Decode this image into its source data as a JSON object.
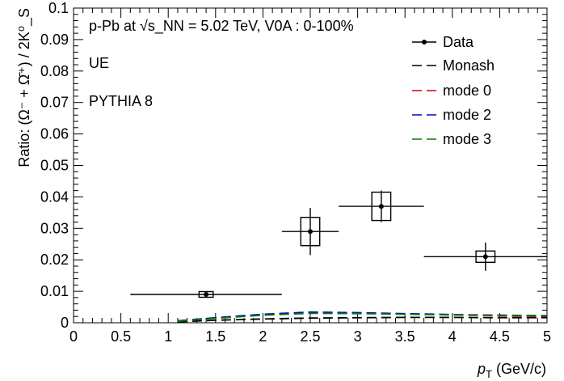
{
  "chart_data": {
    "type": "scatter",
    "title": "",
    "xlim": [
      0,
      5
    ],
    "ylim": [
      0,
      0.1
    ],
    "x_ticks": [
      "0",
      "0.5",
      "1",
      "1.5",
      "2",
      "2.5",
      "3",
      "3.5",
      "4",
      "4.5",
      "5"
    ],
    "y_ticks": [
      "0",
      "0.01",
      "0.02",
      "0.03",
      "0.04",
      "0.05",
      "0.06",
      "0.07",
      "0.08",
      "0.09",
      "0.1"
    ],
    "xlabel": "p_T (GeV/c)",
    "ylabel": "Ratio: (Ω⁻ + Ω̄⁺) / 2K⁰_S",
    "grid": false,
    "legend_position": "top-right",
    "annotations": {
      "system": "p-Pb at √s_NN = 5.02 TeV,  V0A : 0-100%",
      "region": "UE",
      "generator": "PYTHIA 8"
    },
    "data_series": {
      "name": "Data",
      "color": "#000000",
      "points": [
        {
          "x": 1.4,
          "y": 0.009,
          "xlow": 0.6,
          "xhigh": 2.2,
          "stat": 0.0006,
          "sys": 0.0009,
          "boxw": 0.15
        },
        {
          "x": 2.5,
          "y": 0.029,
          "xlow": 2.2,
          "xhigh": 2.8,
          "stat": 0.0075,
          "sys": 0.0045,
          "boxw": 0.2
        },
        {
          "x": 3.25,
          "y": 0.037,
          "xlow": 2.8,
          "xhigh": 3.7,
          "stat": 0.005,
          "sys": 0.0045,
          "boxw": 0.2
        },
        {
          "x": 4.35,
          "y": 0.021,
          "xlow": 3.7,
          "xhigh": 5.0,
          "stat": 0.0045,
          "sys": 0.0018,
          "boxw": 0.2
        }
      ]
    },
    "model_series": [
      {
        "name": "Monash",
        "color": "#000000",
        "x": [
          1.1,
          1.5,
          2.0,
          2.5,
          3.0,
          3.5,
          4.0,
          4.5,
          5.0
        ],
        "y": [
          0.0003,
          0.0008,
          0.0012,
          0.0015,
          0.0016,
          0.0017,
          0.0017,
          0.0016,
          0.0016
        ]
      },
      {
        "name": "mode 0",
        "color": "#d40000",
        "x": [
          1.1,
          1.5,
          2.0,
          2.5,
          3.0,
          3.5,
          4.0,
          4.5,
          5.0
        ],
        "y": [
          0.0006,
          0.0015,
          0.0025,
          0.0033,
          0.0031,
          0.0028,
          0.0025,
          0.0022,
          0.002
        ]
      },
      {
        "name": "mode 2",
        "color": "#0000c8",
        "x": [
          1.1,
          1.5,
          2.0,
          2.5,
          3.0,
          3.5,
          4.0,
          4.5,
          5.0
        ],
        "y": [
          0.0006,
          0.0016,
          0.0027,
          0.0034,
          0.0032,
          0.0029,
          0.0026,
          0.0024,
          0.0022
        ]
      },
      {
        "name": "mode 3",
        "color": "#0a7a00",
        "x": [
          1.1,
          1.5,
          2.0,
          2.5,
          3.0,
          3.5,
          4.0,
          4.5,
          5.0
        ],
        "y": [
          0.0005,
          0.0014,
          0.0024,
          0.003,
          0.0029,
          0.0027,
          0.0025,
          0.0024,
          0.0023
        ]
      }
    ]
  }
}
